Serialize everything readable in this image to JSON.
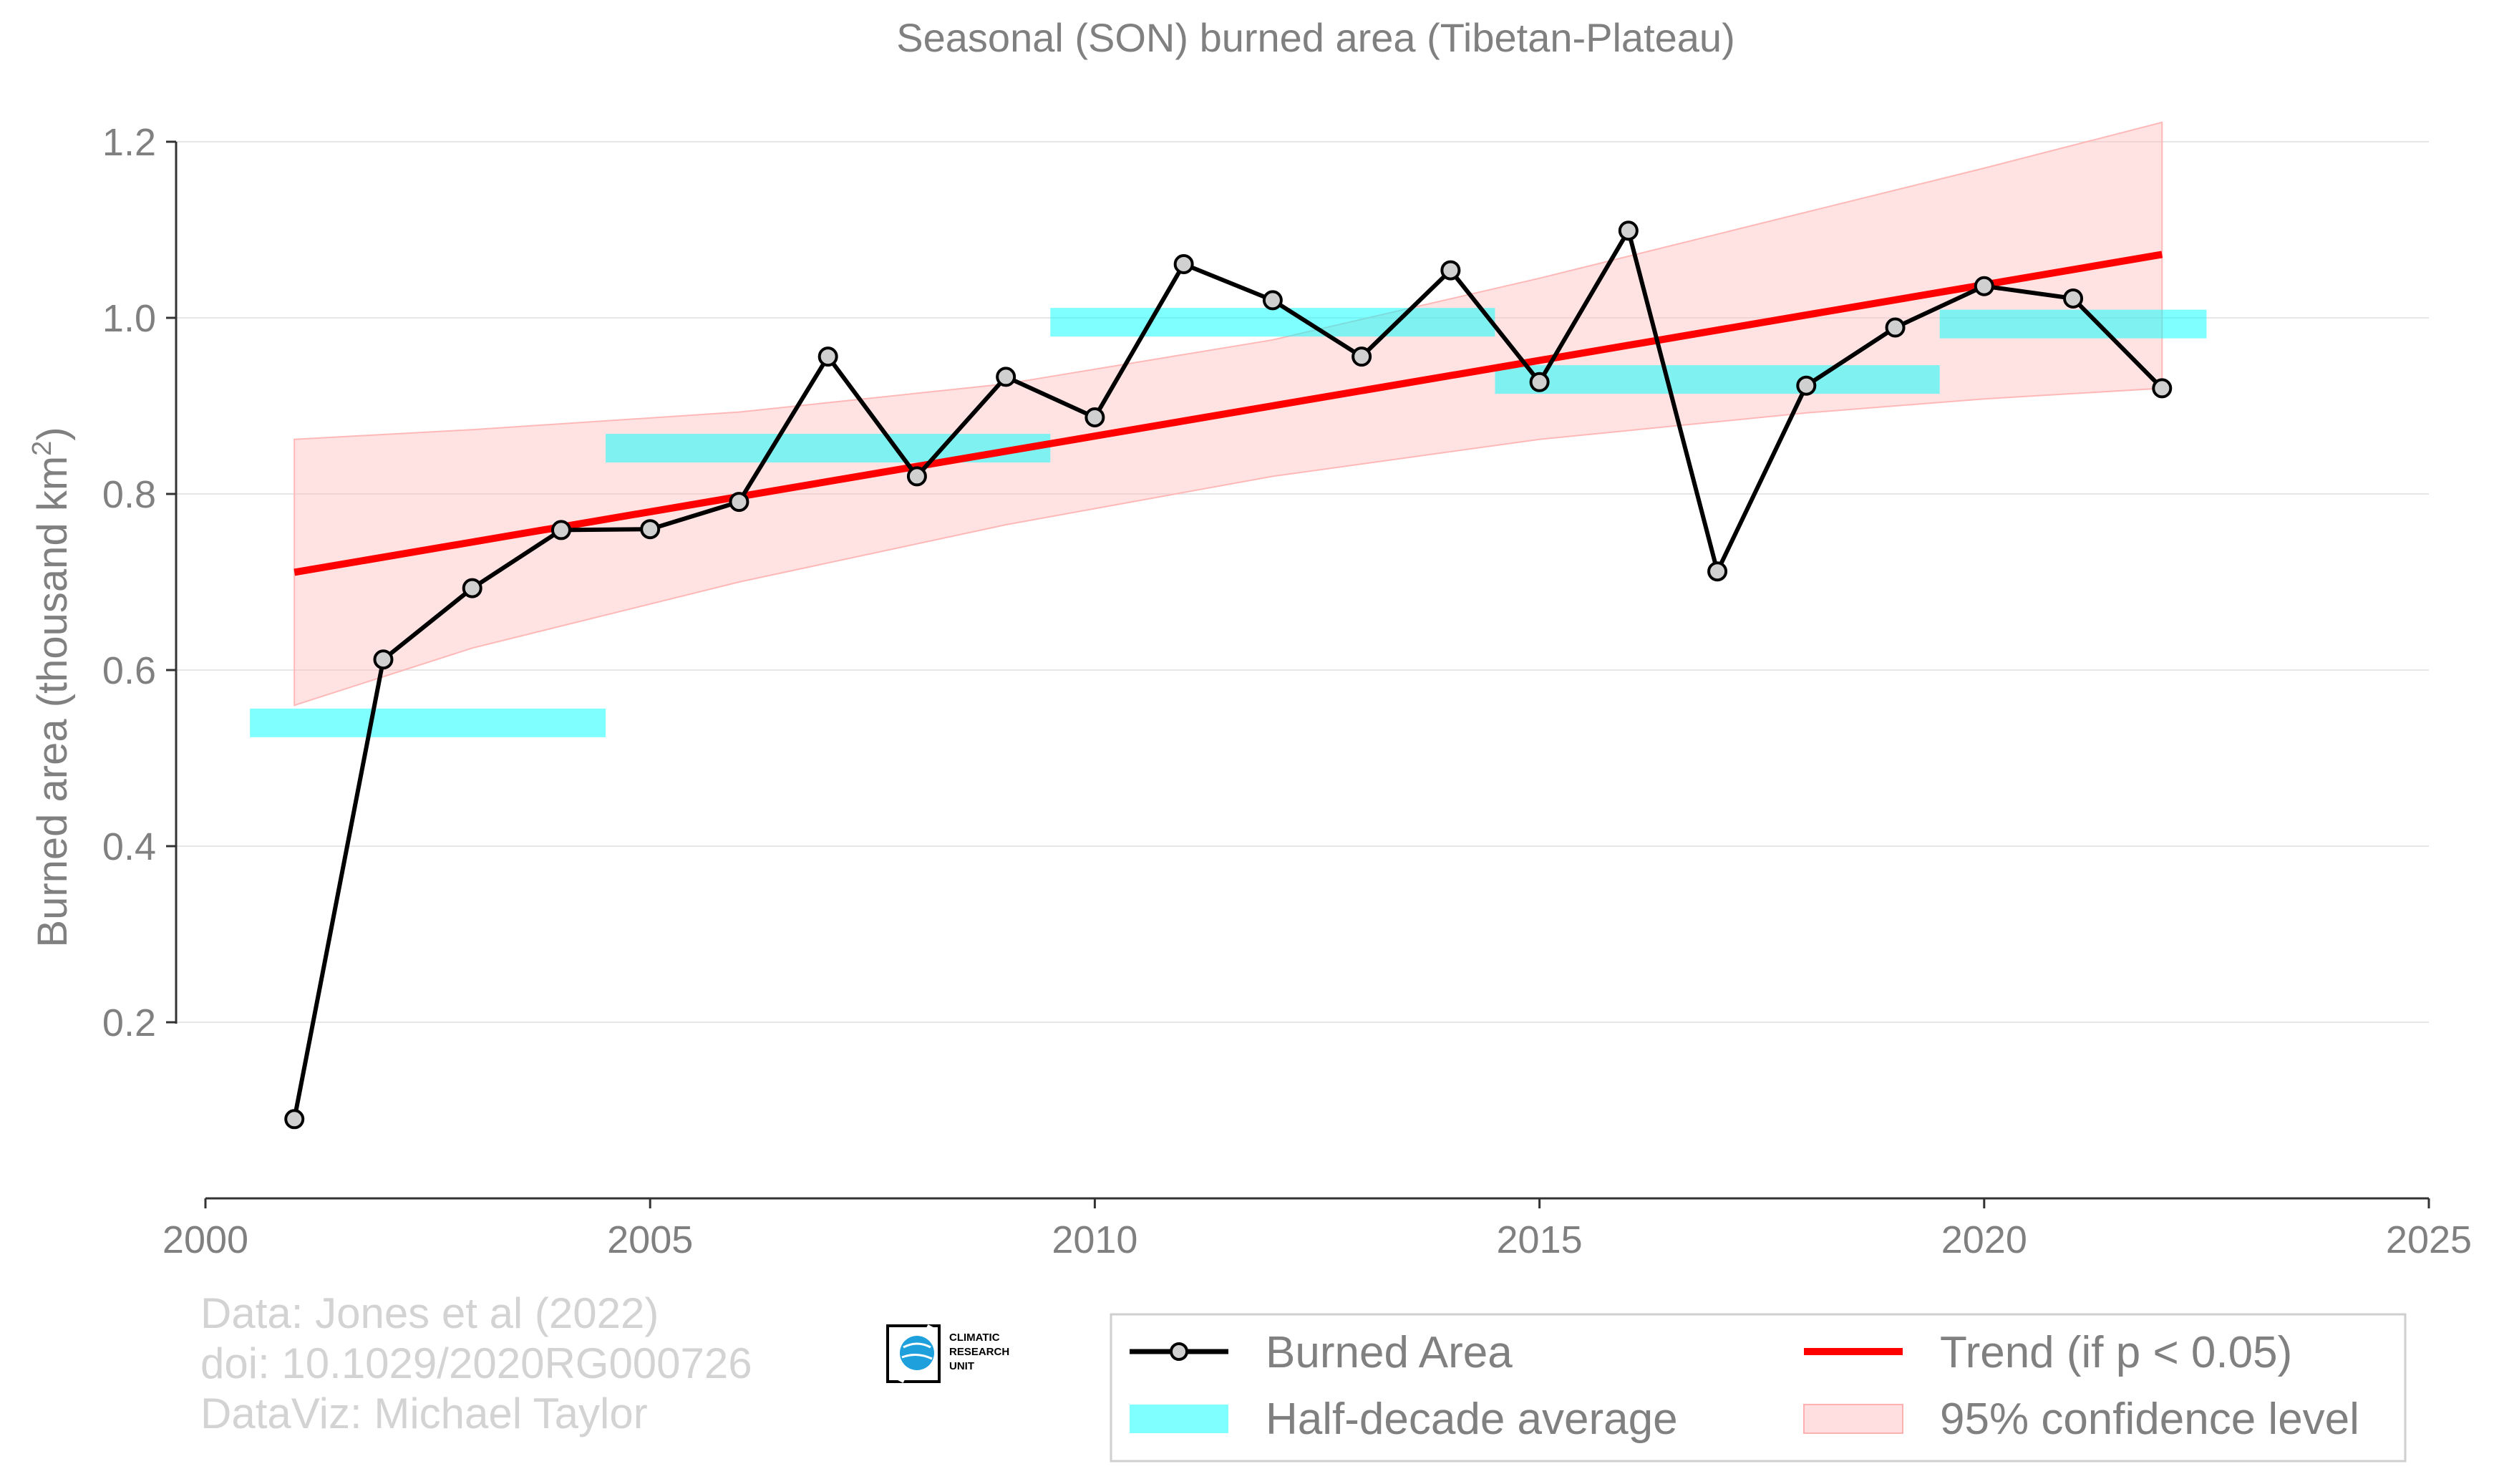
{
  "chart_data": {
    "type": "line",
    "title": "Seasonal (SON) burned area (Tibetan-Plateau)",
    "ylabel": "Burned area (thousand km",
    "ylabel_sup": "2",
    "ylabel_tail": ")",
    "xlim": [
      2000,
      2025
    ],
    "ylim": [
      0,
      1.2
    ],
    "x_ticks": [
      2000,
      2005,
      2010,
      2015,
      2020,
      2025
    ],
    "y_ticks": [
      0.2,
      0.4,
      0.6,
      0.8,
      1.0,
      1.2
    ],
    "y_tick_labels": [
      "0.2",
      "0.4",
      "0.6",
      "0.8",
      "1.0",
      "1.2"
    ],
    "grid": "horizontal",
    "series": [
      {
        "name": "Burned Area",
        "color": "#000000",
        "x": [
          2001,
          2002,
          2003,
          2004,
          2005,
          2006,
          2007,
          2008,
          2009,
          2010,
          2011,
          2012,
          2013,
          2014,
          2015,
          2016,
          2017,
          2018,
          2019,
          2020,
          2021,
          2022
        ],
        "y": [
          0.09,
          0.612,
          0.693,
          0.759,
          0.76,
          0.791,
          0.956,
          0.82,
          0.933,
          0.887,
          1.061,
          1.02,
          0.956,
          1.054,
          0.927,
          1.099,
          0.712,
          0.923,
          0.989,
          1.036,
          1.022,
          0.92
        ]
      }
    ],
    "half_decade_average": {
      "name": "Half-decade average",
      "color": "#00ffff",
      "segments": [
        {
          "x0": 2000.5,
          "x1": 2004.5,
          "y": 0.54
        },
        {
          "x0": 2004.5,
          "x1": 2009.5,
          "y": 0.852
        },
        {
          "x0": 2009.5,
          "x1": 2014.5,
          "y": 0.995
        },
        {
          "x0": 2014.5,
          "x1": 2019.5,
          "y": 0.93
        },
        {
          "x0": 2019.5,
          "x1": 2022.5,
          "y": 0.993
        }
      ]
    },
    "trend": {
      "name": "Trend (if p < 0.05)",
      "color": "#ff0000",
      "x": [
        2001,
        2022
      ],
      "y": [
        0.711,
        1.072
      ]
    },
    "confidence": {
      "name": "95% confidence level",
      "color": "#ffc0c0",
      "x": [
        2001,
        2003,
        2006,
        2009,
        2012,
        2015,
        2018,
        2020,
        2022
      ],
      "lower": [
        0.56,
        0.625,
        0.7,
        0.765,
        0.82,
        0.862,
        0.892,
        0.908,
        0.92
      ],
      "upper": [
        0.862,
        0.873,
        0.893,
        0.925,
        0.975,
        1.045,
        1.12,
        1.17,
        1.222
      ]
    },
    "legend": {
      "placement": "bottom-right",
      "entries": [
        "Burned Area",
        "Trend (if p < 0.05)",
        "Half-decade average",
        "95% confidence level"
      ]
    }
  },
  "credits": {
    "line1": "Data: Jones et al (2022)",
    "line2": "doi: 10.1029/2020RG000726",
    "line3": "DataViz: Michael Taylor"
  },
  "logo": {
    "icon": "globe-icon",
    "line1": "CLIMATIC",
    "line2": "RESEARCH",
    "line3": "UNIT"
  }
}
